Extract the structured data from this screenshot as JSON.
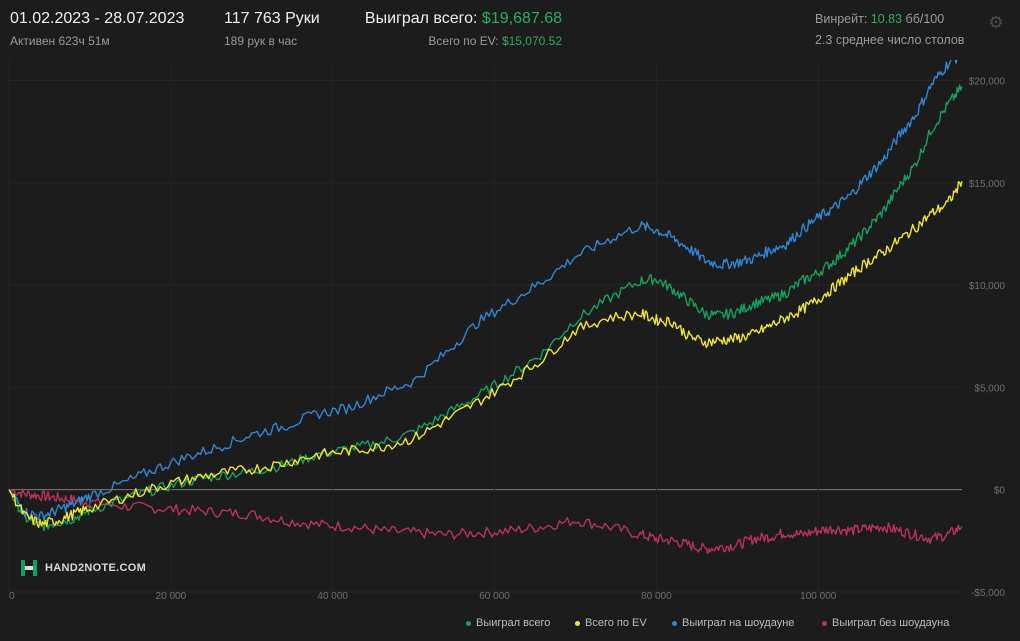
{
  "header": {
    "date_range": "01.02.2023 - 28.07.2023",
    "active": "Активен 623ч 51м",
    "hands": "117 763 Руки",
    "hands_per_hour": "189 рук в час",
    "won_total_label": "Выиграл всего: ",
    "won_total_value": "$19,687.68",
    "ev_label": "Всего по EV: ",
    "ev_value": "$15,070.52",
    "winrate_label": "Винрейт: ",
    "winrate_value": "10.83",
    "winrate_unit": " бб/100",
    "avg_tables": "2.3 среднее число столов",
    "settings_icon": "gear-icon"
  },
  "brand": {
    "text": "HAND2NOTE.COM",
    "icon": "hand2note-logo-icon"
  },
  "colors": {
    "background": "#1c1c1c",
    "won_total": "#12a15c",
    "ev": "#f2e52a",
    "showdown": "#2f86d1",
    "non_showdown": "#b8335a",
    "zero_line": "#8a8a8a",
    "accent_green": "#27ae60"
  },
  "chart_data": {
    "type": "line",
    "xlabel": "",
    "ylabel": "",
    "xlim": [
      0,
      117763
    ],
    "ylim": [
      -5000,
      21000
    ],
    "x_ticks": [
      0,
      20000,
      40000,
      60000,
      80000,
      100000
    ],
    "x_tick_labels": [
      "0",
      "20 000",
      "40 000",
      "60 000",
      "80 000",
      "100 000"
    ],
    "y_ticks": [
      -5000,
      0,
      5000,
      10000,
      15000,
      20000
    ],
    "y_tick_labels": [
      "-$5,000",
      "$0",
      "$5,000",
      "$10,000",
      "$15,000",
      "$20,000"
    ],
    "grid": true,
    "legend_position": "bottom-right",
    "x": [
      0,
      2000,
      4000,
      6000,
      8000,
      10000,
      14000,
      18000,
      22000,
      26000,
      30000,
      34000,
      38000,
      42000,
      46000,
      50000,
      54000,
      58000,
      62000,
      66000,
      70000,
      74000,
      78000,
      80000,
      82000,
      84000,
      86000,
      88000,
      90000,
      92000,
      94000,
      96000,
      98000,
      100000,
      102000,
      104000,
      106000,
      108000,
      110000,
      112000,
      114000,
      116000,
      117763
    ],
    "series": [
      {
        "name": "Выиграл всего",
        "key": "won_total",
        "values": [
          0,
          -1400,
          -1800,
          -1600,
          -1400,
          -1000,
          -500,
          0,
          400,
          700,
          900,
          1200,
          1700,
          2000,
          2300,
          2800,
          3700,
          4600,
          5600,
          6700,
          8300,
          9300,
          10200,
          10300,
          9800,
          9200,
          8600,
          8500,
          8700,
          9100,
          9300,
          9600,
          10200,
          10600,
          11200,
          11900,
          12700,
          13600,
          14800,
          15900,
          17600,
          18800,
          19688
        ]
      },
      {
        "name": "Всего по EV",
        "key": "ev",
        "values": [
          0,
          -1300,
          -1700,
          -1500,
          -1200,
          -900,
          -400,
          100,
          500,
          800,
          1000,
          1300,
          1700,
          1900,
          2100,
          2500,
          3400,
          4300,
          5300,
          6400,
          7800,
          8400,
          8600,
          8300,
          8200,
          7500,
          7200,
          7300,
          7400,
          7600,
          8000,
          8400,
          8800,
          9300,
          9900,
          10500,
          11100,
          11600,
          12200,
          12800,
          13500,
          14000,
          15071
        ]
      },
      {
        "name": "Выиграл на шоудауне",
        "key": "showdown",
        "values": [
          0,
          -1100,
          -1300,
          -1000,
          -700,
          -300,
          300,
          1000,
          1600,
          2100,
          2700,
          3100,
          3700,
          4000,
          4700,
          5300,
          6700,
          8200,
          9200,
          10200,
          11400,
          12200,
          12900,
          12700,
          12300,
          11800,
          11200,
          11000,
          11100,
          11300,
          11700,
          12000,
          12700,
          13300,
          13800,
          14400,
          15300,
          16100,
          17300,
          18300,
          19800,
          20800,
          21300
        ]
      },
      {
        "name": "Выиграл без шоудауна",
        "key": "non_showdown",
        "values": [
          0,
          -200,
          -300,
          -400,
          -500,
          -600,
          -800,
          -900,
          -1000,
          -1100,
          -1200,
          -1500,
          -1700,
          -1800,
          -2000,
          -2100,
          -2200,
          -2100,
          -2000,
          -1800,
          -1500,
          -1800,
          -2200,
          -2400,
          -2500,
          -2700,
          -2900,
          -2800,
          -2700,
          -2400,
          -2300,
          -2100,
          -2200,
          -2000,
          -1900,
          -2000,
          -1900,
          -1800,
          -2000,
          -2200,
          -2400,
          -2200,
          -1800
        ]
      }
    ]
  }
}
